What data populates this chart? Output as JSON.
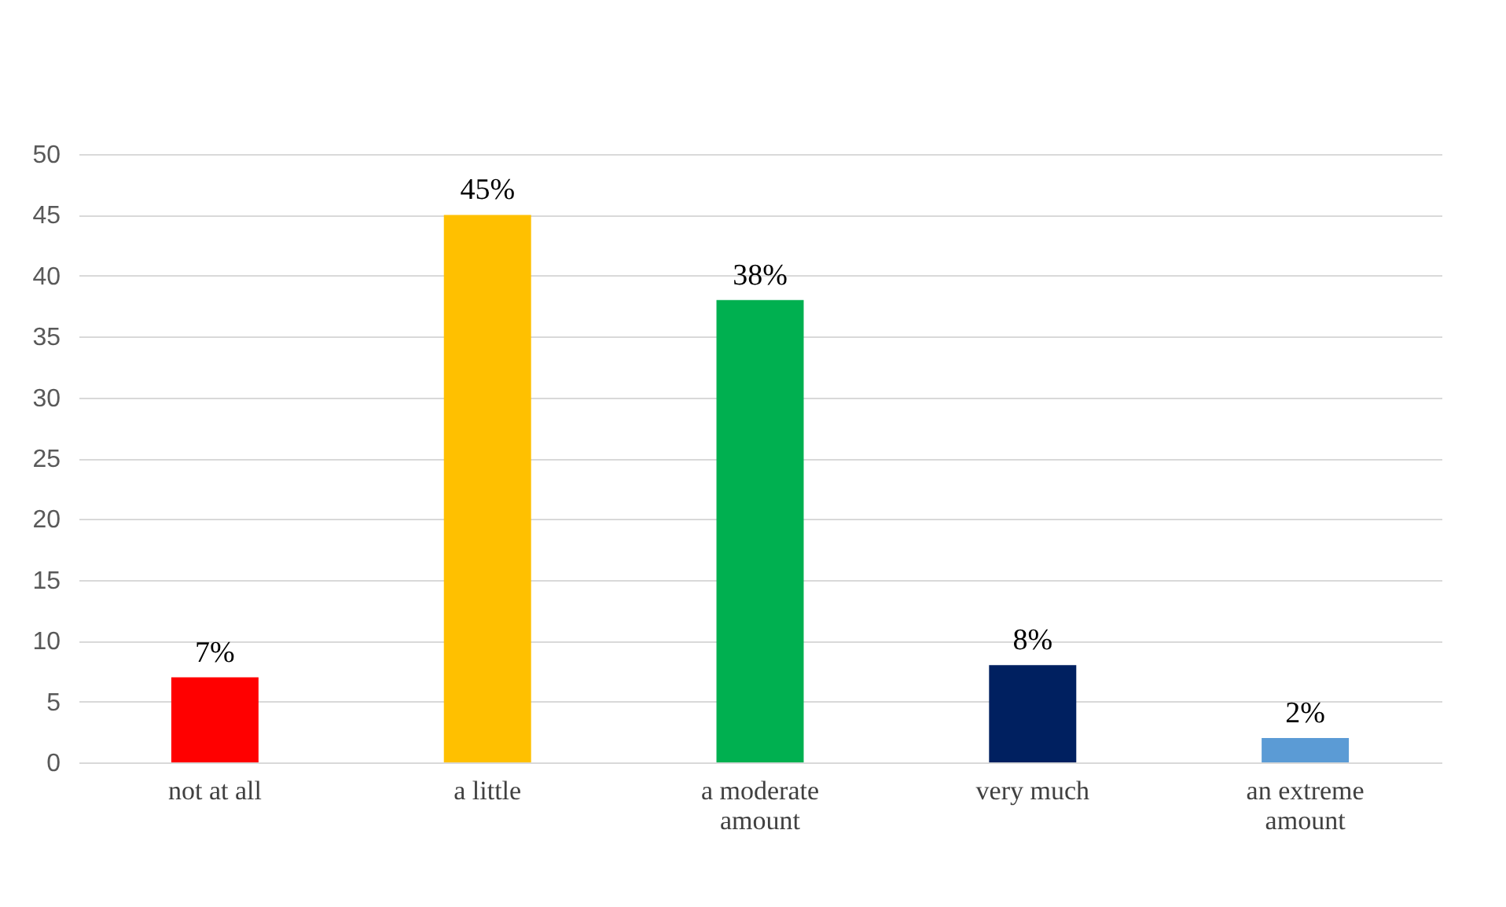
{
  "chart_data": {
    "type": "bar",
    "categories": [
      "not at all",
      "a little",
      "a moderate amount",
      "very much",
      "an extreme amount"
    ],
    "values": [
      7,
      45,
      38,
      8,
      2
    ],
    "colors": [
      "#ff0000",
      "#ffc000",
      "#00b050",
      "#002060",
      "#5b9bd5"
    ],
    "value_labels": [
      "7%",
      "45%",
      "38%",
      "8%",
      "2%"
    ],
    "ylim": [
      0,
      50
    ],
    "yticks": [
      0,
      5,
      10,
      15,
      20,
      25,
      30,
      35,
      40,
      45,
      50
    ],
    "grid": "y",
    "legend": false
  }
}
